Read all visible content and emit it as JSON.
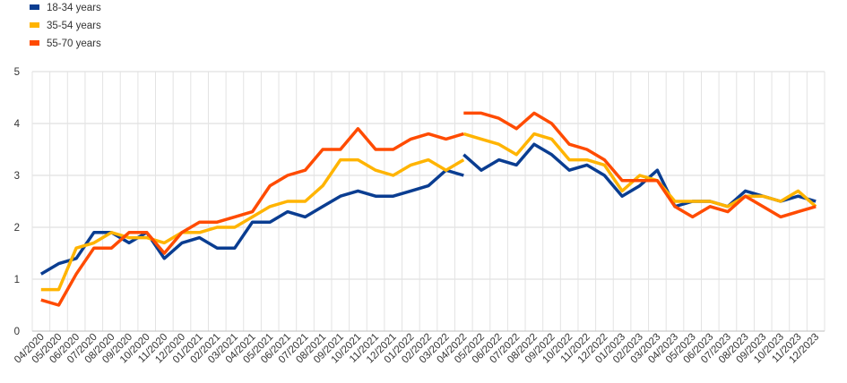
{
  "chart_data": {
    "type": "line",
    "ylim": [
      0,
      5
    ],
    "yticks": [
      0,
      1,
      2,
      3,
      4,
      5
    ],
    "grid": true,
    "legend_position": "top-left",
    "x": [
      "04/2020",
      "05/2020",
      "06/2020",
      "07/2020",
      "08/2020",
      "09/2020",
      "10/2020",
      "11/2020",
      "12/2020",
      "01/2021",
      "02/2021",
      "03/2021",
      "04/2021",
      "05/2021",
      "06/2021",
      "07/2021",
      "08/2021",
      "09/2021",
      "10/2021",
      "11/2021",
      "12/2021",
      "01/2022",
      "02/2022",
      "03/2022",
      "04/2022",
      "05/2022",
      "06/2022",
      "07/2022",
      "08/2022",
      "09/2022",
      "10/2022",
      "11/2022",
      "12/2022",
      "01/2023",
      "02/2023",
      "03/2023",
      "04/2023",
      "05/2023",
      "06/2023",
      "07/2023",
      "08/2023",
      "09/2023",
      "10/2023",
      "11/2023",
      "12/2023"
    ],
    "series": [
      {
        "name": "18-34 years",
        "color": "#0a3d91",
        "segments": [
          {
            "start_index": 0,
            "values": [
              1.1,
              1.3,
              1.4,
              1.9,
              1.9,
              1.7,
              1.9,
              1.4,
              1.7,
              1.8,
              1.6,
              1.6,
              2.1,
              2.1,
              2.3,
              2.2,
              2.4,
              2.6,
              2.7,
              2.6,
              2.6,
              2.7,
              2.8,
              3.1,
              3.0
            ]
          },
          {
            "start_index": 24,
            "values": [
              3.4,
              3.1,
              3.3,
              3.2,
              3.6,
              3.4,
              3.1,
              3.2,
              3.0,
              2.6,
              2.8,
              3.1,
              2.4,
              2.5,
              2.5,
              2.4,
              2.7,
              2.6,
              2.5,
              2.6,
              2.5
            ]
          }
        ]
      },
      {
        "name": "35-54 years",
        "color": "#ffb400",
        "segments": [
          {
            "start_index": 0,
            "values": [
              0.8,
              0.8,
              1.6,
              1.7,
              1.9,
              1.8,
              1.8,
              1.7,
              1.9,
              1.9,
              2.0,
              2.0,
              2.2,
              2.4,
              2.5,
              2.5,
              2.8,
              3.3,
              3.3,
              3.1,
              3.0,
              3.2,
              3.3,
              3.1,
              3.3
            ]
          },
          {
            "start_index": 24,
            "values": [
              3.8,
              3.7,
              3.6,
              3.4,
              3.8,
              3.7,
              3.3,
              3.3,
              3.2,
              2.7,
              3.0,
              2.9,
              2.5,
              2.5,
              2.5,
              2.4,
              2.6,
              2.6,
              2.5,
              2.7,
              2.4
            ]
          }
        ]
      },
      {
        "name": "55-70 years",
        "color": "#ff4b00",
        "segments": [
          {
            "start_index": 0,
            "values": [
              0.6,
              0.5,
              1.1,
              1.6,
              1.6,
              1.9,
              1.9,
              1.5,
              1.9,
              2.1,
              2.1,
              2.2,
              2.3,
              2.8,
              3.0,
              3.1,
              3.5,
              3.5,
              3.9,
              3.5,
              3.5,
              3.7,
              3.8,
              3.7,
              3.8
            ]
          },
          {
            "start_index": 24,
            "values": [
              4.2,
              4.2,
              4.1,
              3.9,
              4.2,
              4.0,
              3.6,
              3.5,
              3.3,
              2.9,
              2.9,
              2.9,
              2.4,
              2.2,
              2.4,
              2.3,
              2.6,
              2.4,
              2.2,
              2.3,
              2.4
            ]
          }
        ]
      }
    ]
  }
}
